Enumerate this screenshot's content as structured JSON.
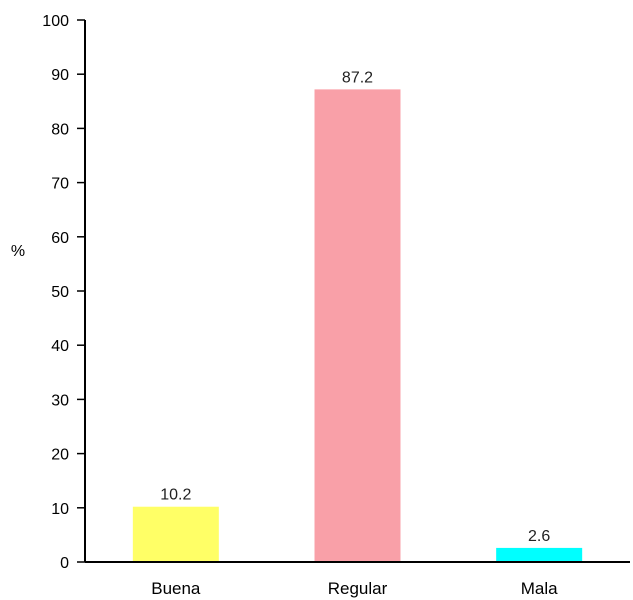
{
  "chart_data": {
    "type": "bar",
    "categories": [
      "Buena",
      "Regular",
      "Mala"
    ],
    "values": [
      10.2,
      87.2,
      2.6
    ],
    "data_labels": [
      "10.2",
      "87.2",
      "2.6"
    ],
    "colors": [
      "#ffff66",
      "#f9a0a8",
      "#00ffff"
    ],
    "title": "",
    "xlabel": "",
    "ylabel": "%",
    "ylim": [
      0,
      100
    ],
    "yticks": [
      "0",
      "10",
      "20",
      "30",
      "40",
      "50",
      "60",
      "70",
      "80",
      "90",
      "100"
    ],
    "grid": false,
    "legend": "none"
  }
}
